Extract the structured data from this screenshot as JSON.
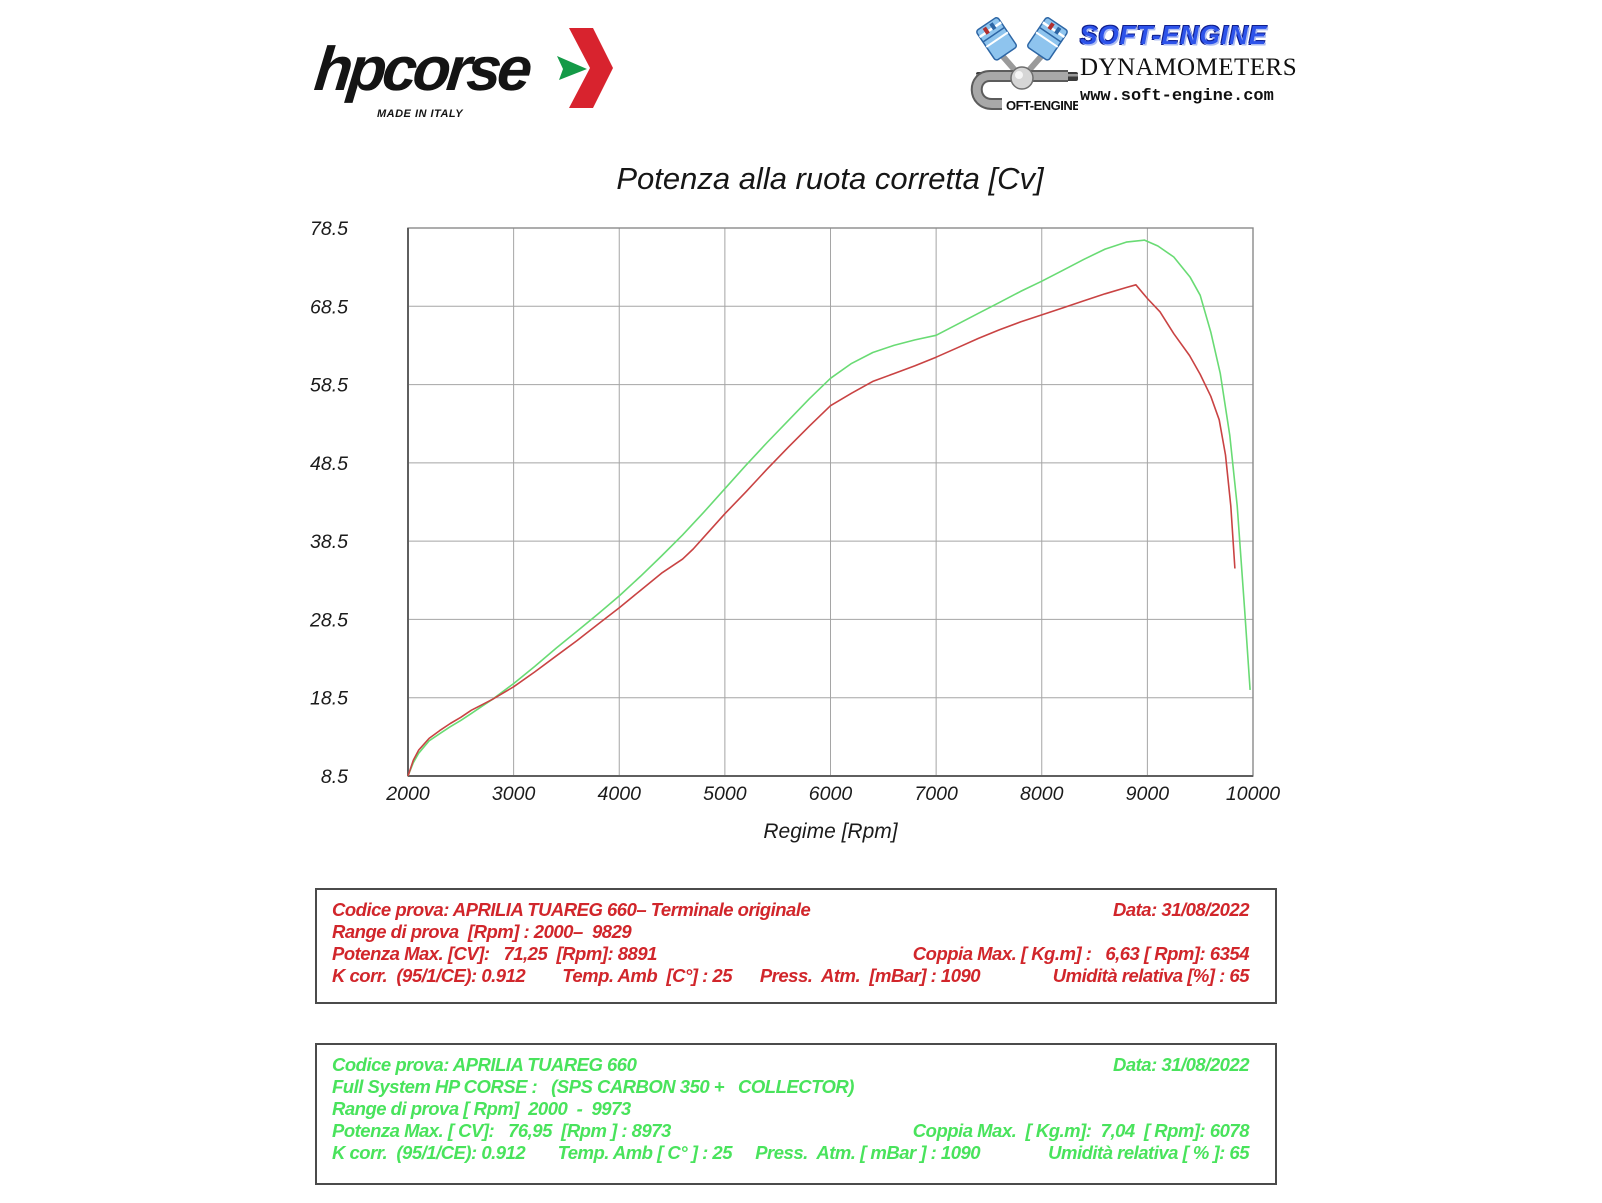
{
  "header": {
    "hpcorse": {
      "wordmark": "hpcorse",
      "tagline": "MADE IN ITALY",
      "arrow_red": "#d8232e",
      "arrow_green": "#149a47"
    },
    "softengine": {
      "brand": "SOFT-ENGINE",
      "logo_text": "OFT-ENGINE",
      "line2": "DYNAMOMETERS",
      "line3": "www.soft-engine.com",
      "brand_color": "#2d53ea"
    }
  },
  "chart_data": {
    "type": "line",
    "title": "Potenza alla ruota corretta [Cv]",
    "xlabel": "Regime [Rpm]",
    "ylabel": "",
    "xlim": [
      2000,
      10000
    ],
    "ylim": [
      8.5,
      78.5
    ],
    "xticks": [
      2000,
      3000,
      4000,
      5000,
      6000,
      7000,
      8000,
      9000,
      10000
    ],
    "yticks": [
      8.5,
      18.5,
      28.5,
      38.5,
      48.5,
      58.5,
      68.5,
      78.5
    ],
    "grid": true,
    "legend": "none",
    "series": [
      {
        "name": "Full System HP CORSE (SPS CARBON 350 + COLLECTOR)",
        "color": "#69db74",
        "points": [
          [
            2000,
            8.5
          ],
          [
            2050,
            10.2
          ],
          [
            2100,
            11.4
          ],
          [
            2200,
            13.0
          ],
          [
            2300,
            13.9
          ],
          [
            2400,
            14.8
          ],
          [
            2500,
            15.6
          ],
          [
            2600,
            16.5
          ],
          [
            2700,
            17.4
          ],
          [
            2800,
            18.3
          ],
          [
            3000,
            20.3
          ],
          [
            3200,
            22.5
          ],
          [
            3400,
            24.8
          ],
          [
            3600,
            27.0
          ],
          [
            3800,
            29.2
          ],
          [
            4000,
            31.5
          ],
          [
            4200,
            34.0
          ],
          [
            4400,
            36.6
          ],
          [
            4600,
            39.3
          ],
          [
            4800,
            42.2
          ],
          [
            5000,
            45.2
          ],
          [
            5200,
            48.2
          ],
          [
            5400,
            51.1
          ],
          [
            5600,
            53.9
          ],
          [
            5800,
            56.7
          ],
          [
            6000,
            59.3
          ],
          [
            6200,
            61.2
          ],
          [
            6400,
            62.6
          ],
          [
            6600,
            63.5
          ],
          [
            6800,
            64.2
          ],
          [
            7000,
            64.8
          ],
          [
            7200,
            66.2
          ],
          [
            7400,
            67.6
          ],
          [
            7600,
            69.0
          ],
          [
            7800,
            70.4
          ],
          [
            8000,
            71.7
          ],
          [
            8200,
            73.1
          ],
          [
            8400,
            74.5
          ],
          [
            8600,
            75.8
          ],
          [
            8800,
            76.7
          ],
          [
            8973,
            76.95
          ],
          [
            9100,
            76.2
          ],
          [
            9250,
            74.8
          ],
          [
            9405,
            72.2
          ],
          [
            9500,
            69.9
          ],
          [
            9600,
            65.2
          ],
          [
            9690,
            59.9
          ],
          [
            9780,
            52.0
          ],
          [
            9850,
            43.0
          ],
          [
            9920,
            30.0
          ],
          [
            9973,
            19.5
          ]
        ]
      },
      {
        "name": "Terminale originale",
        "color": "#c94343",
        "points": [
          [
            2000,
            8.5
          ],
          [
            2050,
            10.5
          ],
          [
            2100,
            11.8
          ],
          [
            2200,
            13.3
          ],
          [
            2300,
            14.3
          ],
          [
            2400,
            15.2
          ],
          [
            2500,
            16.0
          ],
          [
            2600,
            16.9
          ],
          [
            2700,
            17.6
          ],
          [
            2800,
            18.3
          ],
          [
            3000,
            19.9
          ],
          [
            3200,
            21.8
          ],
          [
            3400,
            23.8
          ],
          [
            3600,
            25.8
          ],
          [
            3800,
            27.9
          ],
          [
            4000,
            30.0
          ],
          [
            4200,
            32.2
          ],
          [
            4400,
            34.4
          ],
          [
            4600,
            36.2
          ],
          [
            4700,
            37.5
          ],
          [
            4800,
            39.0
          ],
          [
            5000,
            42.0
          ],
          [
            5200,
            44.8
          ],
          [
            5400,
            47.7
          ],
          [
            5600,
            50.5
          ],
          [
            5800,
            53.2
          ],
          [
            6000,
            55.8
          ],
          [
            6200,
            57.4
          ],
          [
            6400,
            58.9
          ],
          [
            6600,
            59.9
          ],
          [
            6800,
            60.9
          ],
          [
            7000,
            62.0
          ],
          [
            7200,
            63.2
          ],
          [
            7400,
            64.4
          ],
          [
            7600,
            65.5
          ],
          [
            7800,
            66.5
          ],
          [
            8000,
            67.4
          ],
          [
            8200,
            68.3
          ],
          [
            8400,
            69.2
          ],
          [
            8600,
            70.1
          ],
          [
            8800,
            70.9
          ],
          [
            8891,
            71.25
          ],
          [
            9000,
            69.5
          ],
          [
            9120,
            67.8
          ],
          [
            9250,
            65.0
          ],
          [
            9400,
            62.2
          ],
          [
            9500,
            59.8
          ],
          [
            9600,
            57.0
          ],
          [
            9680,
            54.0
          ],
          [
            9740,
            49.5
          ],
          [
            9790,
            43.0
          ],
          [
            9829,
            35.0
          ]
        ]
      }
    ]
  },
  "info_boxes": {
    "original": {
      "text_color": "#d1262b",
      "rows": [
        {
          "left": "Codice prova: APRILIA TUAREG 660– Terminale originale",
          "right": "Data: 31/08/2022"
        },
        {
          "left": "Range di prova  [Rpm] : 2000–  9829",
          "right": ""
        },
        {
          "left": "Potenza Max. [CV]:   71,25  [Rpm]: 8891",
          "right": "Coppia Max. [ Kg.m] :   6,63 [ Rpm]: 6354"
        },
        {
          "left": "K corr.  (95/1/CE): 0.912        Temp. Amb  [C°] : 25      Press.  Atm.  [mBar] : 1090",
          "right": "Umidità relativa [%] : 65"
        }
      ]
    },
    "hp_corse": {
      "text_color": "#49e35c",
      "rows": [
        {
          "left": "Codice prova: APRILIA TUAREG 660",
          "right": "Data: 31/08/2022"
        },
        {
          "left": "Full System HP CORSE :   (SPS CARBON 350 +   COLLECTOR)",
          "right": ""
        },
        {
          "left": "Range di prova [ Rpm]  2000  -  9973",
          "right": ""
        },
        {
          "left": "Potenza Max. [ CV]:   76,95  [Rpm ] : 8973",
          "right": "Coppia Max.  [ Kg.m]:  7,04  [ Rpm]: 6078"
        },
        {
          "left": "K corr.  (95/1/CE): 0.912       Temp. Amb [ C° ] : 25     Press.  Atm. [ mBar ] : 1090",
          "right": "Umidità relativa [ % ]: 65"
        }
      ]
    }
  }
}
